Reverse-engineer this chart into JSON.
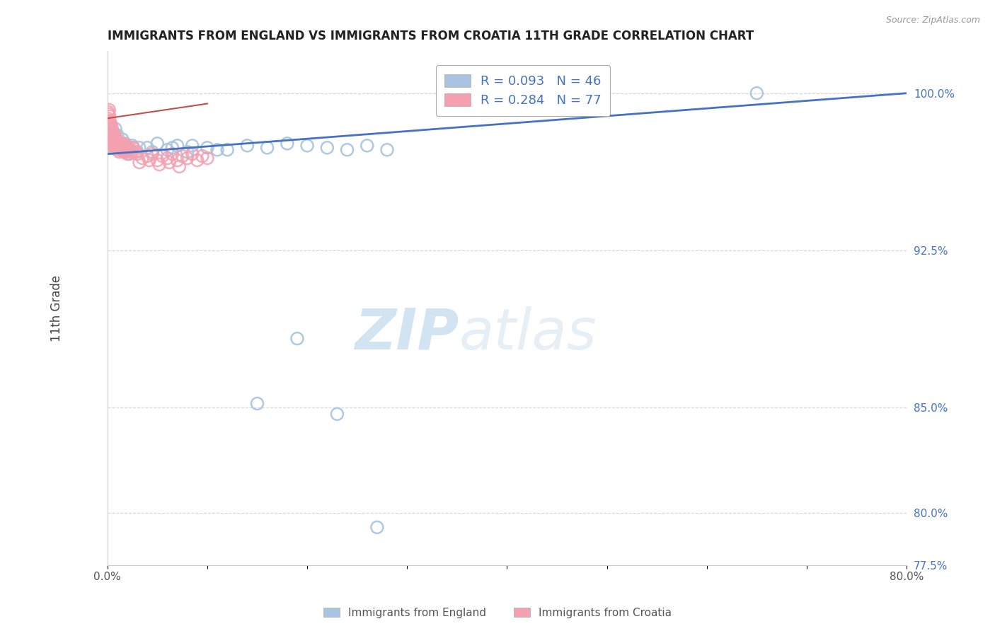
{
  "title": "IMMIGRANTS FROM ENGLAND VS IMMIGRANTS FROM CROATIA 11TH GRADE CORRELATION CHART",
  "source": "Source: ZipAtlas.com",
  "ylabel": "11th Grade",
  "xlim": [
    0.0,
    80.0
  ],
  "ylim": [
    77.5,
    102.0
  ],
  "legend_england": "Immigrants from England",
  "legend_croatia": "Immigrants from Croatia",
  "R_england": 0.093,
  "N_england": 46,
  "R_croatia": 0.284,
  "N_croatia": 77,
  "england_color": "#a8c4e0",
  "croatia_color": "#f4a0b0",
  "england_line_color": "#4472c4",
  "croatia_line_color": "#c0504d",
  "england_scatter_x": [
    0.2,
    0.3,
    0.4,
    0.5,
    0.6,
    0.7,
    0.8,
    0.9,
    1.0,
    1.2,
    1.5,
    1.8,
    2.0,
    2.5,
    3.0,
    4.0,
    5.0,
    6.0,
    7.0,
    8.0,
    10.0,
    12.0,
    14.0,
    16.0,
    18.0,
    20.0,
    22.0,
    24.0,
    26.0,
    28.0,
    65.0,
    0.3,
    0.5,
    0.7,
    1.1,
    1.6,
    2.2,
    3.2,
    4.5,
    6.5,
    8.5,
    11.0,
    15.0,
    19.0,
    23.0,
    27.0
  ],
  "england_scatter_y": [
    97.5,
    97.8,
    98.0,
    97.6,
    98.1,
    97.9,
    98.3,
    97.7,
    98.0,
    97.5,
    97.8,
    97.6,
    97.3,
    97.5,
    97.2,
    97.4,
    97.6,
    97.3,
    97.5,
    97.2,
    97.4,
    97.3,
    97.5,
    97.4,
    97.6,
    97.5,
    97.4,
    97.3,
    97.5,
    97.3,
    100.0,
    97.6,
    97.4,
    97.7,
    97.5,
    97.3,
    97.1,
    97.4,
    97.2,
    97.4,
    97.5,
    97.3,
    85.2,
    88.3,
    84.7,
    79.3
  ],
  "croatia_scatter_x": [
    0.05,
    0.08,
    0.1,
    0.12,
    0.15,
    0.18,
    0.2,
    0.22,
    0.25,
    0.28,
    0.3,
    0.32,
    0.35,
    0.38,
    0.4,
    0.42,
    0.45,
    0.48,
    0.5,
    0.55,
    0.6,
    0.65,
    0.7,
    0.75,
    0.8,
    0.85,
    0.9,
    0.95,
    1.0,
    1.1,
    1.2,
    1.3,
    1.4,
    1.5,
    1.6,
    1.7,
    1.8,
    1.9,
    2.0,
    2.2,
    2.4,
    2.6,
    2.8,
    3.0,
    3.5,
    4.0,
    4.5,
    5.0,
    5.5,
    6.0,
    6.5,
    7.0,
    7.5,
    8.0,
    8.5,
    9.0,
    9.5,
    10.0,
    0.15,
    0.35,
    0.55,
    0.75,
    0.95,
    1.15,
    1.35,
    1.55,
    1.75,
    1.95,
    2.15,
    2.35,
    2.55,
    3.2,
    4.2,
    5.2,
    6.2,
    7.2
  ],
  "croatia_scatter_y": [
    98.8,
    99.1,
    98.5,
    99.0,
    98.7,
    99.2,
    98.3,
    98.9,
    98.1,
    98.6,
    97.8,
    98.4,
    98.0,
    98.5,
    97.7,
    98.2,
    97.9,
    98.3,
    97.6,
    98.0,
    97.5,
    97.8,
    97.6,
    98.0,
    97.4,
    97.7,
    97.5,
    97.8,
    97.3,
    97.5,
    97.2,
    97.5,
    97.3,
    97.6,
    97.2,
    97.4,
    97.3,
    97.5,
    97.1,
    97.3,
    97.2,
    97.4,
    97.2,
    97.1,
    96.9,
    97.0,
    97.1,
    96.8,
    97.0,
    96.9,
    97.1,
    96.8,
    97.0,
    96.9,
    97.1,
    96.8,
    97.0,
    96.9,
    97.8,
    97.6,
    97.9,
    97.5,
    97.7,
    97.4,
    97.6,
    97.3,
    97.5,
    97.2,
    97.4,
    97.2,
    97.4,
    96.7,
    96.8,
    96.6,
    96.7,
    96.5
  ],
  "england_line_x": [
    0.0,
    80.0
  ],
  "england_line_y": [
    97.1,
    100.0
  ],
  "croatia_line_x": [
    0.0,
    10.0
  ],
  "croatia_line_y": [
    98.8,
    99.5
  ],
  "y_ticks": [
    77.5,
    80.0,
    85.0,
    92.5,
    100.0
  ],
  "y_tick_labels": [
    "77.5%",
    "80.0%",
    "85.0%",
    "92.5%",
    "100.0%"
  ],
  "watermark_zip": "ZIP",
  "watermark_atlas": "atlas",
  "background_color": "#ffffff",
  "grid_color": "#bbbbbb"
}
